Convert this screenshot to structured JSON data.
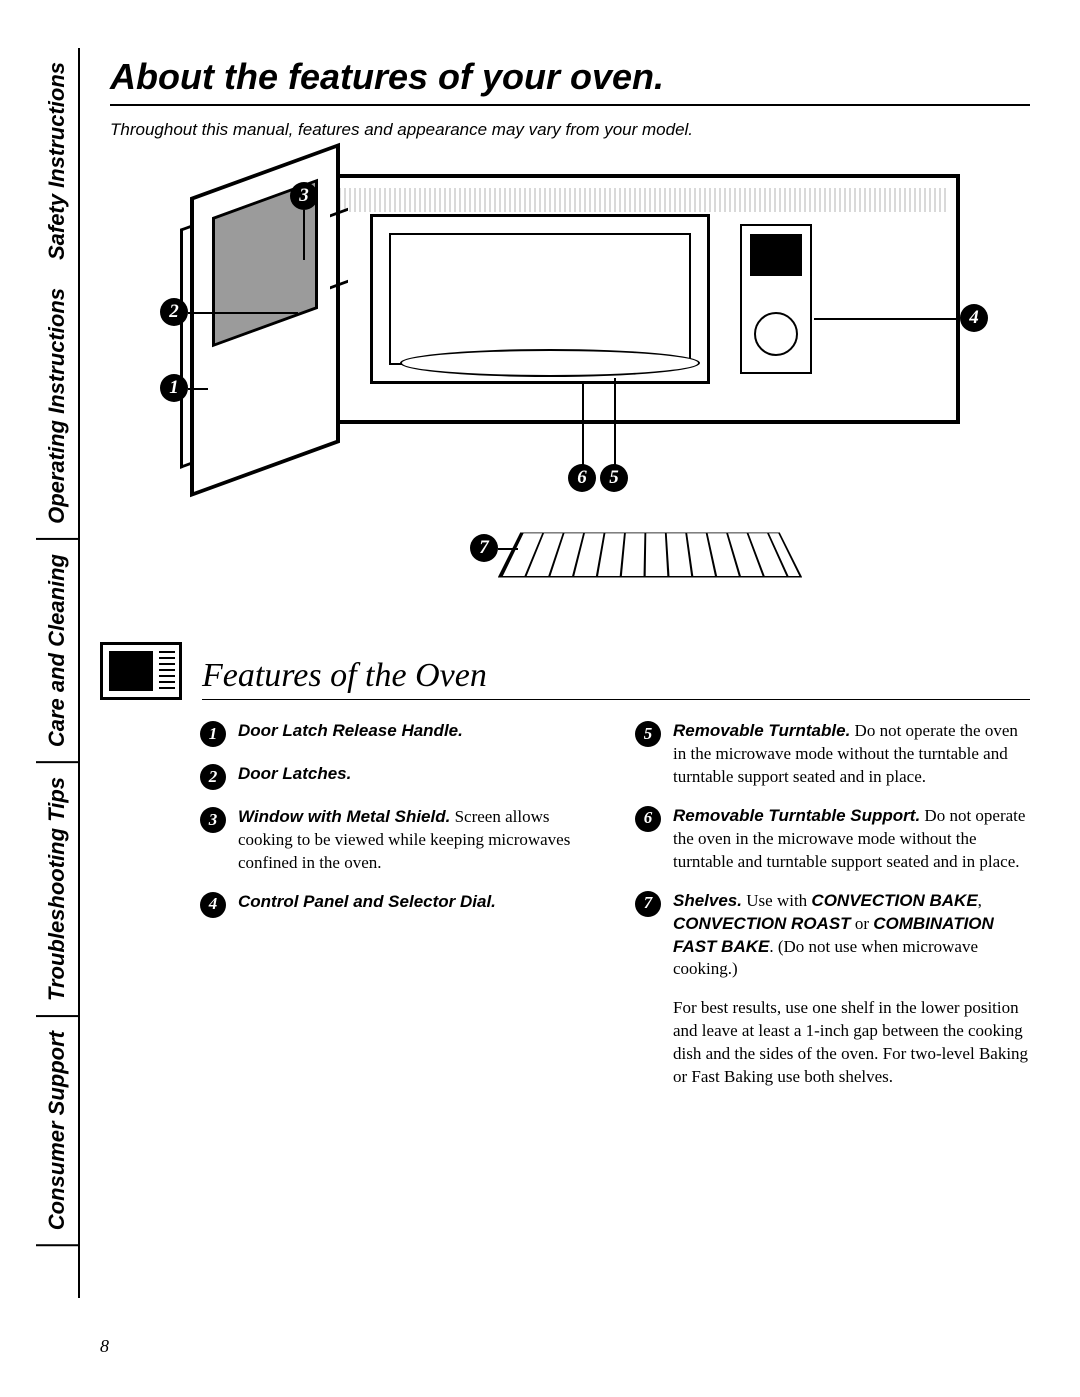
{
  "page_number": "8",
  "title": "About the features of your oven.",
  "note": "Throughout this manual, features and appearance may vary from your model.",
  "section_heading": "Features of the Oven",
  "tabs": [
    {
      "label": "Safety Instructions"
    },
    {
      "label": "Operating Instructions"
    },
    {
      "label": "Care and Cleaning"
    },
    {
      "label": "Troubleshooting Tips"
    },
    {
      "label": "Consumer Support"
    }
  ],
  "callouts": {
    "c1": "1",
    "c2": "2",
    "c3": "3",
    "c4": "4",
    "c5": "5",
    "c6": "6",
    "c7": "7"
  },
  "features_left": [
    {
      "n": "1",
      "bold": "Door Latch Release Handle.",
      "rest": ""
    },
    {
      "n": "2",
      "bold": "Door Latches.",
      "rest": ""
    },
    {
      "n": "3",
      "bold": "Window with Metal Shield.",
      "rest": " Screen allows cooking to be viewed while keeping microwaves confined in the oven."
    },
    {
      "n": "4",
      "bold": "Control Panel and Selector Dial.",
      "rest": ""
    }
  ],
  "features_right": [
    {
      "n": "5",
      "bold": "Removable Turntable.",
      "rest": " Do not operate the oven in the microwave mode without the turntable and turntable support seated and in place."
    },
    {
      "n": "6",
      "bold": "Removable Turntable Support.",
      "rest": " Do not operate the oven in the microwave mode without the turntable and turntable support seated and in place."
    }
  ],
  "feature7": {
    "n": "7",
    "bold": "Shelves.",
    "lead": " Use with ",
    "k1": "CONVECTION BAKE",
    "sep1": ", ",
    "k2": "CONVECTION ROAST",
    "sep2": " or ",
    "k3": "COMBINATION FAST BAKE",
    "tail": ". (Do not use when microwave cooking.)"
  },
  "extra_paragraph": "For best results, use one shelf in the lower position and leave at least a 1-inch gap between the cooking dish and the sides of the oven. For two-level Baking or Fast Baking use both shelves.",
  "colors": {
    "text": "#000000",
    "bg": "#ffffff",
    "window_fill": "#9b9b9b"
  }
}
